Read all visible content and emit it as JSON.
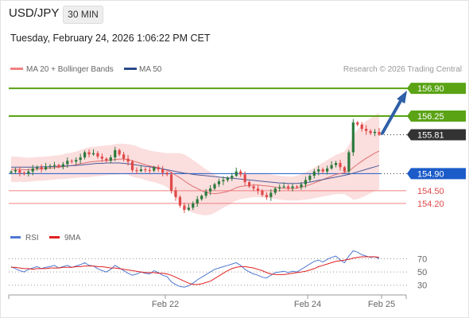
{
  "header": {
    "symbol": "USD/JPY",
    "timeframe": "30 MIN",
    "datetime": "Tuesday, February 24, 2026 1:06:22 PM CET"
  },
  "legend": {
    "bollinger_label": "MA 20 + Bollinger Bands",
    "ma50_label": "MA 50",
    "copyright": "Research © 2026 Trading Central",
    "rsi_label": "RSI",
    "rsi_ma_label": "9MA"
  },
  "colors": {
    "bull": "#2c7a3c",
    "bear": "#e04848",
    "bollinger_fill": "#fbdada",
    "ma20": "#e07070",
    "ma50": "#4a5a9a",
    "resistance": "#5aa315",
    "support": "#1c5cc9",
    "support_red": "#f08080",
    "current": "#333333",
    "arrow": "#2f5fa8",
    "rsi": "#4f79d2",
    "rsi_ma": "#e02020"
  },
  "chart_data": [
    {
      "type": "candlestick",
      "title": "USD/JPY 30 MIN",
      "x_ticks": [
        "Feb 22",
        "Feb 24",
        "Feb 25"
      ],
      "ylim": [
        153.9,
        157.2
      ],
      "price_levels": [
        {
          "label": "156.90",
          "value": 156.9,
          "kind": "resistance"
        },
        {
          "label": "156.25",
          "value": 156.25,
          "kind": "resistance"
        },
        {
          "label": "155.81",
          "value": 155.81,
          "kind": "current"
        },
        {
          "label": "154.90",
          "value": 154.9,
          "kind": "support-blue"
        },
        {
          "label": "154.50",
          "value": 154.5,
          "kind": "support"
        },
        {
          "label": "154.20",
          "value": 154.2,
          "kind": "support"
        }
      ],
      "close": [
        154.95,
        154.98,
        154.92,
        154.9,
        154.95,
        155.02,
        155.05,
        155.0,
        155.06,
        155.08,
        155.1,
        155.06,
        155.12,
        155.2,
        155.18,
        155.22,
        155.28,
        155.4,
        155.35,
        155.38,
        155.3,
        155.25,
        155.2,
        155.28,
        155.45,
        155.35,
        155.25,
        155.18,
        154.98,
        154.96,
        155.0,
        154.98,
        154.97,
        155.05,
        155.0,
        154.92,
        154.88,
        154.5,
        154.35,
        154.15,
        154.05,
        154.1,
        154.2,
        154.3,
        154.38,
        154.48,
        154.55,
        154.65,
        154.72,
        154.75,
        154.8,
        154.85,
        154.95,
        154.88,
        154.7,
        154.6,
        154.55,
        154.5,
        154.4,
        154.35,
        154.45,
        154.55,
        154.58,
        154.6,
        154.56,
        154.6,
        154.58,
        154.65,
        154.75,
        154.85,
        154.95,
        155.0,
        154.95,
        155.02,
        155.1,
        155.15,
        155.05,
        154.95,
        155.4,
        156.1,
        156.05,
        155.95,
        155.9,
        155.85,
        155.88,
        155.81
      ],
      "ma20": [
        155.0,
        155.0,
        155.0,
        154.99,
        154.99,
        155.0,
        155.01,
        155.01,
        155.02,
        155.03,
        155.04,
        155.05,
        155.06,
        155.08,
        155.09,
        155.11,
        155.13,
        155.15,
        155.17,
        155.18,
        155.19,
        155.2,
        155.21,
        155.22,
        155.23,
        155.24,
        155.24,
        155.23,
        155.2,
        155.17,
        155.14,
        155.11,
        155.08,
        155.06,
        155.04,
        155.01,
        154.98,
        154.93,
        154.86,
        154.8,
        154.73,
        154.66,
        154.6,
        154.55,
        154.5,
        154.46,
        154.44,
        154.43,
        154.44,
        154.46,
        154.48,
        154.52,
        154.57,
        154.6,
        154.61,
        154.62,
        154.63,
        154.63,
        154.62,
        154.61,
        154.6,
        154.58,
        154.57,
        154.56,
        154.55,
        154.55,
        154.56,
        154.58,
        154.61,
        154.64,
        154.68,
        154.72,
        154.76,
        154.8,
        154.84,
        154.88,
        154.9,
        154.92,
        154.96,
        155.04,
        155.12,
        155.19,
        155.26,
        155.32,
        155.38,
        155.43
      ],
      "ma50": [
        155.05,
        155.05,
        155.05,
        155.05,
        155.05,
        155.05,
        155.05,
        155.06,
        155.06,
        155.06,
        155.07,
        155.07,
        155.08,
        155.08,
        155.09,
        155.09,
        155.1,
        155.11,
        155.12,
        155.13,
        155.14,
        155.14,
        155.15,
        155.15,
        155.15,
        155.15,
        155.14,
        155.13,
        155.12,
        155.1,
        155.09,
        155.07,
        155.06,
        155.04,
        155.03,
        155.01,
        154.99,
        154.97,
        154.95,
        154.93,
        154.91,
        154.9,
        154.88,
        154.87,
        154.86,
        154.85,
        154.84,
        154.83,
        154.82,
        154.81,
        154.8,
        154.79,
        154.78,
        154.77,
        154.76,
        154.75,
        154.74,
        154.73,
        154.72,
        154.71,
        154.7,
        154.69,
        154.68,
        154.68,
        154.67,
        154.67,
        154.67,
        154.68,
        154.69,
        154.7,
        154.72,
        154.74,
        154.76,
        154.78,
        154.8,
        154.82,
        154.84,
        154.86,
        154.88,
        154.91,
        154.94,
        154.97,
        155.0,
        155.03,
        155.06,
        155.09
      ],
      "bb_width": [
        0.3,
        0.3,
        0.29,
        0.29,
        0.28,
        0.28,
        0.28,
        0.28,
        0.28,
        0.28,
        0.28,
        0.28,
        0.29,
        0.3,
        0.3,
        0.31,
        0.32,
        0.34,
        0.35,
        0.35,
        0.35,
        0.35,
        0.35,
        0.35,
        0.36,
        0.36,
        0.36,
        0.36,
        0.37,
        0.37,
        0.36,
        0.36,
        0.36,
        0.36,
        0.37,
        0.38,
        0.4,
        0.45,
        0.52,
        0.58,
        0.62,
        0.63,
        0.62,
        0.6,
        0.57,
        0.54,
        0.5,
        0.45,
        0.4,
        0.36,
        0.33,
        0.31,
        0.3,
        0.3,
        0.29,
        0.29,
        0.28,
        0.28,
        0.28,
        0.28,
        0.28,
        0.28,
        0.28,
        0.28,
        0.28,
        0.28,
        0.29,
        0.3,
        0.32,
        0.34,
        0.36,
        0.38,
        0.4,
        0.42,
        0.44,
        0.46,
        0.48,
        0.5,
        0.6,
        0.75,
        0.82,
        0.85,
        0.87,
        0.88,
        0.89,
        0.9
      ],
      "forecast": {
        "from": 155.81,
        "to": 156.9
      }
    },
    {
      "type": "line",
      "title": "RSI",
      "y_ticks": [
        70,
        50,
        30
      ],
      "ylim": [
        20,
        85
      ],
      "series": [
        {
          "name": "RSI",
          "values": [
            58,
            55,
            52,
            50,
            54,
            56,
            58,
            55,
            57,
            58,
            60,
            56,
            58,
            60,
            57,
            59,
            61,
            64,
            60,
            59,
            55,
            52,
            50,
            54,
            60,
            56,
            52,
            48,
            45,
            47,
            50,
            48,
            47,
            52,
            49,
            45,
            43,
            35,
            31,
            28,
            27,
            29,
            33,
            38,
            42,
            46,
            50,
            54,
            56,
            58,
            60,
            62,
            64,
            60,
            54,
            50,
            47,
            45,
            42,
            41,
            45,
            49,
            50,
            51,
            49,
            51,
            50,
            54,
            58,
            62,
            66,
            68,
            65,
            69,
            72,
            74,
            68,
            64,
            74,
            82,
            80,
            76,
            74,
            72,
            73,
            70
          ]
        },
        {
          "name": "9MA",
          "values": [
            57,
            57,
            56,
            55,
            55,
            54,
            55,
            55,
            55,
            56,
            56,
            56,
            57,
            57,
            57,
            58,
            58,
            59,
            59,
            59,
            58,
            58,
            57,
            56,
            56,
            55,
            54,
            53,
            52,
            51,
            50,
            49,
            49,
            49,
            48,
            48,
            47,
            45,
            42,
            39,
            36,
            33,
            31,
            31,
            32,
            34,
            36,
            40,
            44,
            48,
            52,
            55,
            57,
            58,
            58,
            57,
            56,
            54,
            52,
            49,
            47,
            46,
            46,
            46,
            47,
            48,
            49,
            50,
            51,
            53,
            55,
            58,
            60,
            62,
            64,
            66,
            67,
            68,
            69,
            71,
            72,
            73,
            73,
            73,
            73,
            72
          ]
        }
      ]
    }
  ]
}
